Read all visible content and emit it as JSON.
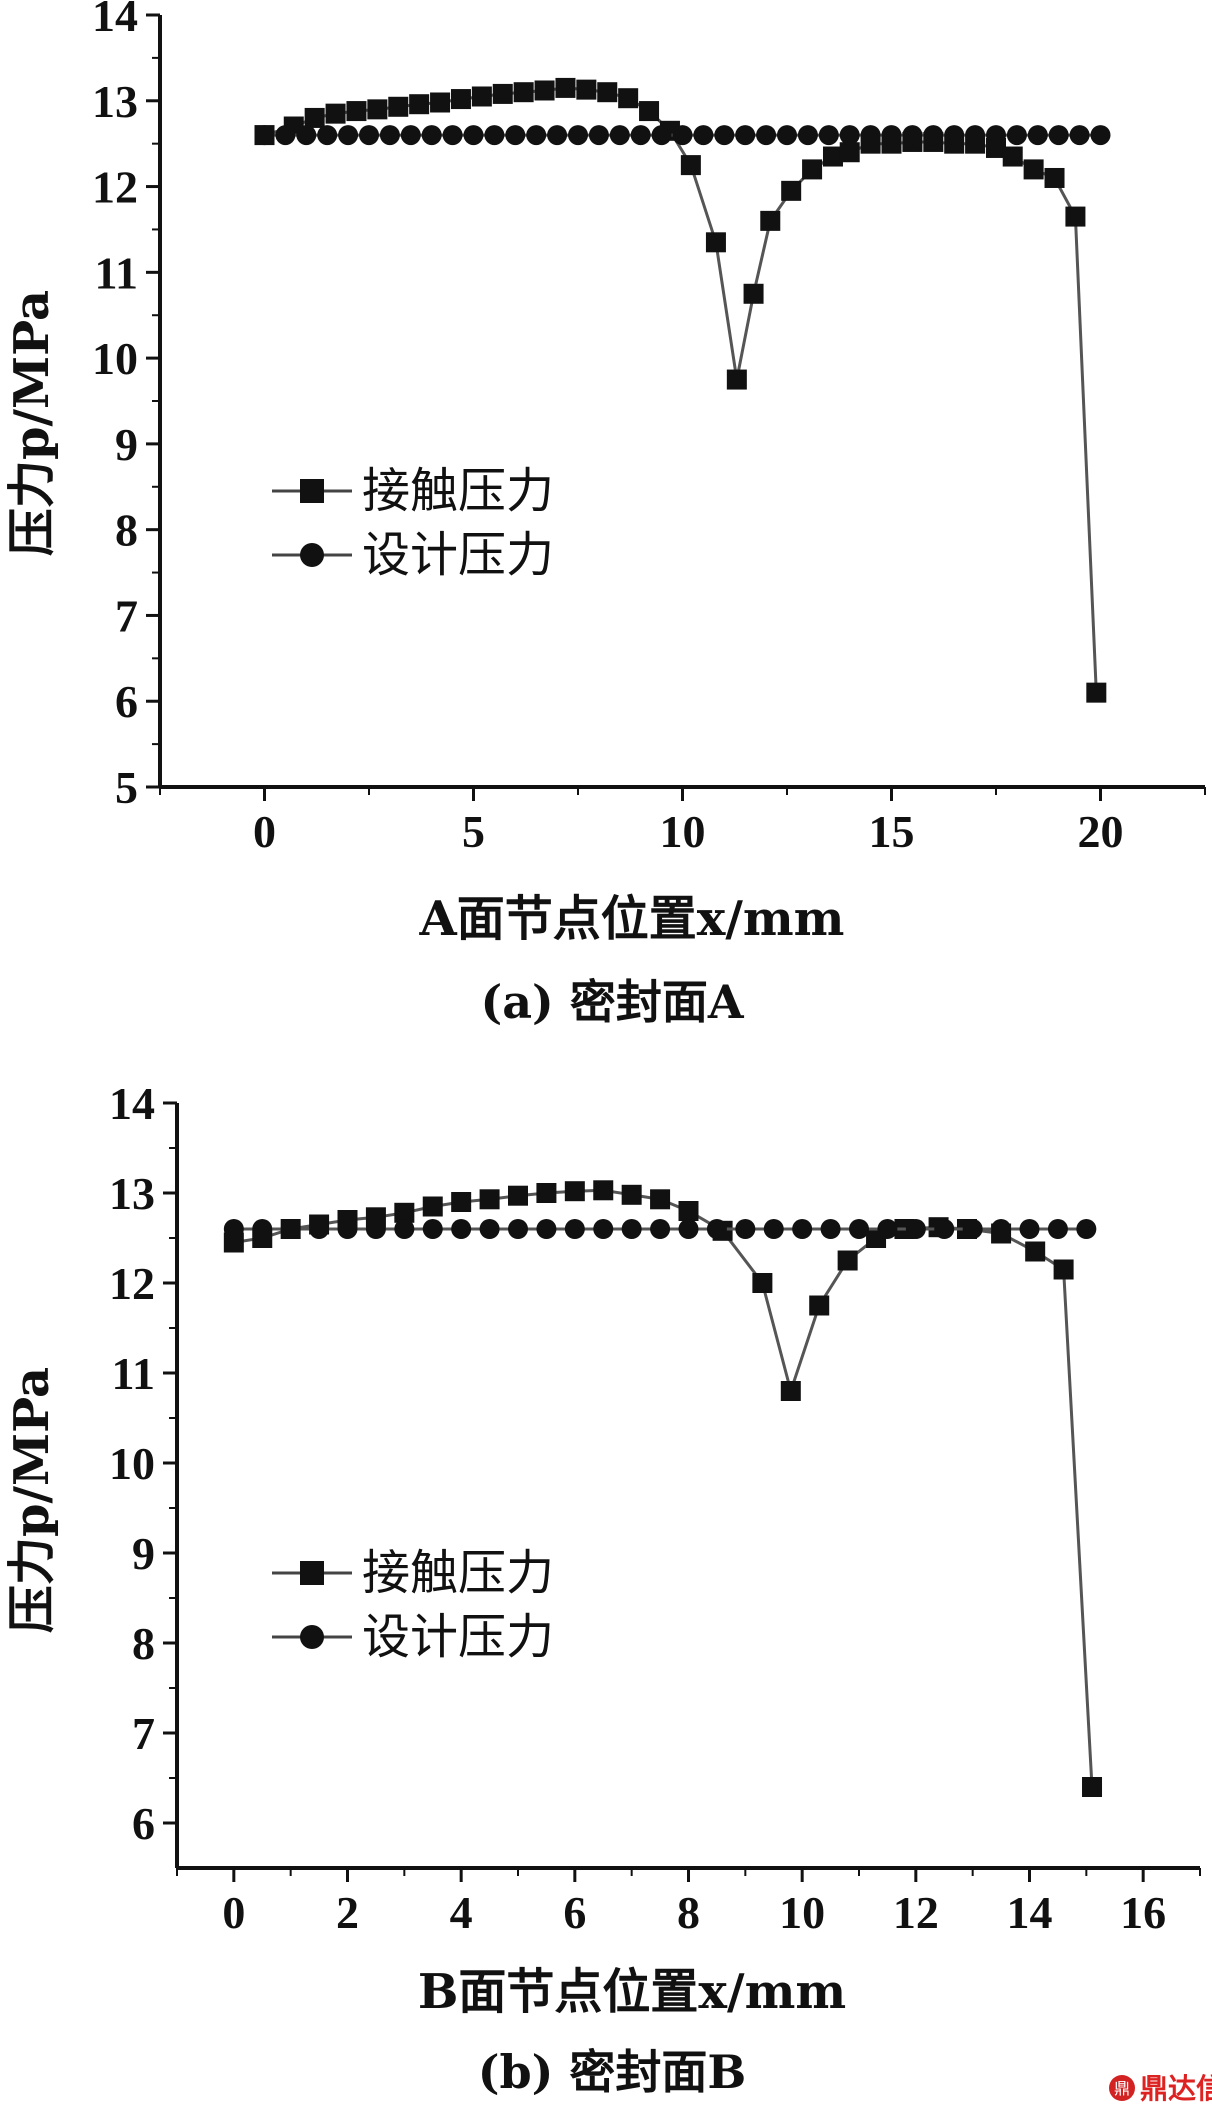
{
  "chart_data": [
    {
      "type": "line",
      "xlabel": "A面节点位置x/mm",
      "ylabel": "压力p/MPa",
      "caption": "(a) 密封面A",
      "xlim": [
        -2.5,
        22.5
      ],
      "ylim": [
        5,
        14
      ],
      "xticks": [
        0,
        5,
        10,
        15,
        20
      ],
      "yticks": [
        5,
        6,
        7,
        8,
        9,
        10,
        11,
        12,
        13,
        14
      ],
      "legend_position": "center-left",
      "series": [
        {
          "name": "接触压力",
          "marker": "square",
          "x": [
            0,
            0.7,
            1.2,
            1.7,
            2.2,
            2.7,
            3.2,
            3.7,
            4.2,
            4.7,
            5.2,
            5.7,
            6.2,
            6.7,
            7.2,
            7.7,
            8.2,
            8.7,
            9.2,
            9.7,
            10.2,
            10.8,
            11.3,
            11.7,
            12.1,
            12.6,
            13.1,
            13.6,
            14.0,
            14.5,
            15.0,
            15.5,
            16.0,
            16.5,
            17.0,
            17.5,
            17.9,
            18.4,
            18.9,
            19.4,
            19.9
          ],
          "y": [
            12.6,
            12.7,
            12.8,
            12.85,
            12.88,
            12.9,
            12.93,
            12.96,
            12.98,
            13.02,
            13.05,
            13.08,
            13.1,
            13.12,
            13.15,
            13.13,
            13.1,
            13.03,
            12.88,
            12.65,
            12.25,
            11.35,
            9.75,
            10.75,
            11.6,
            11.95,
            12.2,
            12.35,
            12.4,
            12.5,
            12.5,
            12.52,
            12.52,
            12.5,
            12.5,
            12.45,
            12.35,
            12.2,
            12.1,
            11.65,
            6.1
          ]
        },
        {
          "name": "设计压力",
          "marker": "circle",
          "x": [
            0,
            0.5,
            1.0,
            1.5,
            2.0,
            2.5,
            3.0,
            3.5,
            4.0,
            4.5,
            5.0,
            5.5,
            6.0,
            6.5,
            7.0,
            7.5,
            8.0,
            8.5,
            9.0,
            9.5,
            10.0,
            10.5,
            11.0,
            11.5,
            12.0,
            12.5,
            13.0,
            13.5,
            14.0,
            14.5,
            15.0,
            15.5,
            16.0,
            16.5,
            17.0,
            17.5,
            18.0,
            18.5,
            19.0,
            19.5,
            20.0
          ],
          "y": [
            12.6,
            12.6,
            12.6,
            12.6,
            12.6,
            12.6,
            12.6,
            12.6,
            12.6,
            12.6,
            12.6,
            12.6,
            12.6,
            12.6,
            12.6,
            12.6,
            12.6,
            12.6,
            12.6,
            12.6,
            12.6,
            12.6,
            12.6,
            12.6,
            12.6,
            12.6,
            12.6,
            12.6,
            12.6,
            12.6,
            12.6,
            12.6,
            12.6,
            12.6,
            12.6,
            12.6,
            12.6,
            12.6,
            12.6,
            12.6,
            12.6
          ]
        }
      ]
    },
    {
      "type": "line",
      "xlabel": "B面节点位置x/mm",
      "ylabel": "压力p/MPa",
      "caption": "(b) 密封面B",
      "xlim": [
        -1,
        17
      ],
      "ylim": [
        5.5,
        14
      ],
      "xticks": [
        0,
        2,
        4,
        6,
        8,
        10,
        12,
        14,
        16
      ],
      "yticks": [
        6,
        7,
        8,
        9,
        10,
        11,
        12,
        13,
        14
      ],
      "legend_position": "center-left",
      "series": [
        {
          "name": "接触压力",
          "marker": "square",
          "x": [
            0,
            0.5,
            1.0,
            1.5,
            2.0,
            2.5,
            3.0,
            3.5,
            4.0,
            4.5,
            5.0,
            5.5,
            6.0,
            6.5,
            7.0,
            7.5,
            8.0,
            8.6,
            9.3,
            9.8,
            10.3,
            10.8,
            11.3,
            11.8,
            12.4,
            12.9,
            13.5,
            14.1,
            14.6,
            15.1
          ],
          "y": [
            12.45,
            12.5,
            12.6,
            12.65,
            12.7,
            12.73,
            12.78,
            12.85,
            12.9,
            12.93,
            12.97,
            13.0,
            13.02,
            13.03,
            12.98,
            12.93,
            12.8,
            12.58,
            12.0,
            10.8,
            11.75,
            12.25,
            12.5,
            12.6,
            12.62,
            12.6,
            12.55,
            12.35,
            12.15,
            6.4
          ]
        },
        {
          "name": "设计压力",
          "marker": "circle",
          "x": [
            0,
            0.5,
            1.0,
            1.5,
            2.0,
            2.5,
            3.0,
            3.5,
            4.0,
            4.5,
            5.0,
            5.5,
            6.0,
            6.5,
            7.0,
            7.5,
            8.0,
            8.5,
            9.0,
            9.5,
            10.0,
            10.5,
            11.0,
            11.5,
            12.0,
            12.5,
            13.0,
            13.5,
            14.0,
            14.5,
            15.0
          ],
          "y": [
            12.6,
            12.6,
            12.6,
            12.6,
            12.6,
            12.6,
            12.6,
            12.6,
            12.6,
            12.6,
            12.6,
            12.6,
            12.6,
            12.6,
            12.6,
            12.6,
            12.6,
            12.6,
            12.6,
            12.6,
            12.6,
            12.6,
            12.6,
            12.6,
            12.6,
            12.6,
            12.6,
            12.6,
            12.6,
            12.6,
            12.6
          ]
        }
      ]
    }
  ],
  "watermark": {
    "logo_icon": "dingdaxin-logo-icon",
    "text": "鼎达信",
    "color": "#d22222"
  }
}
